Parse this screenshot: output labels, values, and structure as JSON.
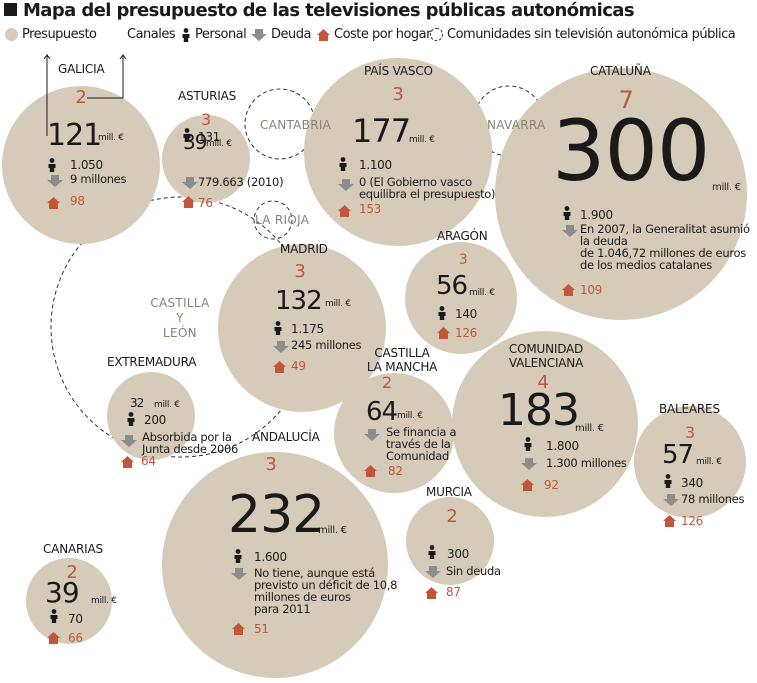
{
  "title": "Mapa del presupuesto de las televisiones públicas autonómicas",
  "legend": {
    "presupuesto": "Presupuesto",
    "canales": "Canales",
    "personal": "Personal",
    "deuda": "Deuda",
    "coste": "Coste por hogar",
    "sin_tv": "Comunidades sin televisión autonómica pública"
  },
  "colors": {
    "bubble": "#d6cbb8",
    "accent": "#c0573a",
    "text": "#1a1a1a",
    "icon_grey": "#8c8c8c"
  },
  "icons": {
    "personal": "person-icon",
    "deuda": "down-arrow-icon",
    "coste": "house-icon"
  },
  "chart_data": {
    "type": "bubble",
    "unit": "mill. €",
    "regions": [
      {
        "name": "GALICIA",
        "canales": "2",
        "budget": 121,
        "budget_label": "121",
        "unit": "mill. €",
        "personal": "1.050",
        "deuda": [
          "9 millones"
        ],
        "coste": "98"
      },
      {
        "name": "ASTURIAS",
        "canales": "3",
        "budget": 39,
        "budget_label": "39",
        "unit": "mill. €",
        "personal": "131",
        "deuda": [
          "779.663 (2010)"
        ],
        "coste": "76"
      },
      {
        "name": "PAÍS VASCO",
        "canales": "3",
        "budget": 177,
        "budget_label": "177",
        "unit": "mill. €",
        "personal": "1.100",
        "deuda": [
          "0 (El Gobierno vasco",
          "equilibra el presupuesto)"
        ],
        "coste": "153"
      },
      {
        "name": "CATALUÑA",
        "canales": "7",
        "budget": 300,
        "budget_label": "300",
        "unit": "mill. €",
        "personal": "1.900",
        "deuda": [
          "En 2007, la Generalitat asumió",
          "la deuda",
          "de 1.046,72 millones de euros",
          "de los medios catalanes"
        ],
        "coste": "109"
      },
      {
        "name": "ARAGÓN",
        "canales": "3",
        "budget": 56,
        "budget_label": "56",
        "unit": "mill. €",
        "personal": "140",
        "deuda": [],
        "coste": "126"
      },
      {
        "name": "MADRID",
        "canales": "3",
        "budget": 132,
        "budget_label": "132",
        "unit": "mill. €",
        "personal": "1.175",
        "deuda": [
          "245 millones"
        ],
        "coste": "49"
      },
      {
        "name": "EXTREMADURA",
        "canales": "",
        "budget": 32,
        "budget_label": "32",
        "unit": "mill. €",
        "personal": "200",
        "deuda": [
          "Absorbida por la",
          "Junta desde 2006"
        ],
        "coste": "64"
      },
      {
        "name": "CASTILLA\nLA MANCHA",
        "canales": "2",
        "budget": 64,
        "budget_label": "64",
        "unit": "mill. €",
        "personal": "",
        "deuda": [
          "Se financia a",
          "través de la",
          "Comunidad"
        ],
        "coste": "82"
      },
      {
        "name": "COMUNIDAD\nVALENCIANA",
        "canales": "4",
        "budget": 183,
        "budget_label": "183",
        "unit": "mill. €",
        "personal": "1.800",
        "deuda": [
          "1.300 millones"
        ],
        "coste": "92"
      },
      {
        "name": "BALEARES",
        "canales": "3",
        "budget": 57,
        "budget_label": "57",
        "unit": "mill. €",
        "personal": "340",
        "deuda": [
          "78 millones"
        ],
        "coste": "126"
      },
      {
        "name": "ANDALUCÍA",
        "canales": "3",
        "budget": 232,
        "budget_label": "232",
        "unit": "mill. €",
        "personal": "1.600",
        "deuda": [
          "No tiene, aunque está",
          "previsto un déficit de 10,8",
          "millones de euros",
          "para 2011"
        ],
        "coste": "51"
      },
      {
        "name": "MURCIA",
        "canales": "2",
        "budget": null,
        "budget_label": "",
        "unit": "",
        "personal": "300",
        "deuda": [
          "Sin deuda"
        ],
        "coste": "87"
      },
      {
        "name": "CANARIAS",
        "canales": "2",
        "budget": 39,
        "budget_label": "39",
        "unit": "mill. €",
        "personal": "70",
        "deuda": [],
        "coste": "66"
      }
    ],
    "no_tv": [
      {
        "name": "CANTABRIA"
      },
      {
        "name": "NAVARRA"
      },
      {
        "name": "LA RIOJA"
      },
      {
        "name": "CASTILLA\nY\nLEÓN"
      }
    ]
  }
}
